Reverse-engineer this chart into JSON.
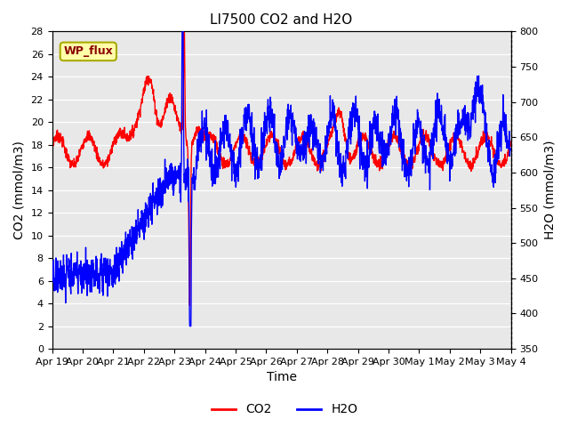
{
  "title": "LI7500 CO2 and H2O",
  "xlabel": "Time",
  "ylabel_left": "CO2 (mmol/m3)",
  "ylabel_right": "H2O (mmol/m3)",
  "ylim_left": [
    0,
    28
  ],
  "ylim_right": [
    350,
    800
  ],
  "yticks_left": [
    0,
    2,
    4,
    6,
    8,
    10,
    12,
    14,
    16,
    18,
    20,
    22,
    24,
    26,
    28
  ],
  "yticks_right": [
    350,
    400,
    450,
    500,
    550,
    600,
    650,
    700,
    750,
    800
  ],
  "xtick_labels": [
    "Apr 19",
    "Apr 20",
    "Apr 21",
    "Apr 22",
    "Apr 23",
    "Apr 24",
    "Apr 25",
    "Apr 26",
    "Apr 27",
    "Apr 28",
    "Apr 29",
    "Apr 30",
    "May 1",
    "May 2",
    "May 3",
    "May 4"
  ],
  "co2_color": "#FF0000",
  "h2o_color": "#0000FF",
  "background_color": "#E8E8E8",
  "title_fontsize": 11,
  "axis_label_fontsize": 10,
  "tick_fontsize": 8,
  "legend_entries": [
    "CO2",
    "H2O"
  ],
  "wp_flux_label": "WP_flux",
  "wp_flux_box_color": "#FFFFAA",
  "wp_flux_text_color": "#8B0000",
  "wp_flux_edge_color": "#AAAA00"
}
